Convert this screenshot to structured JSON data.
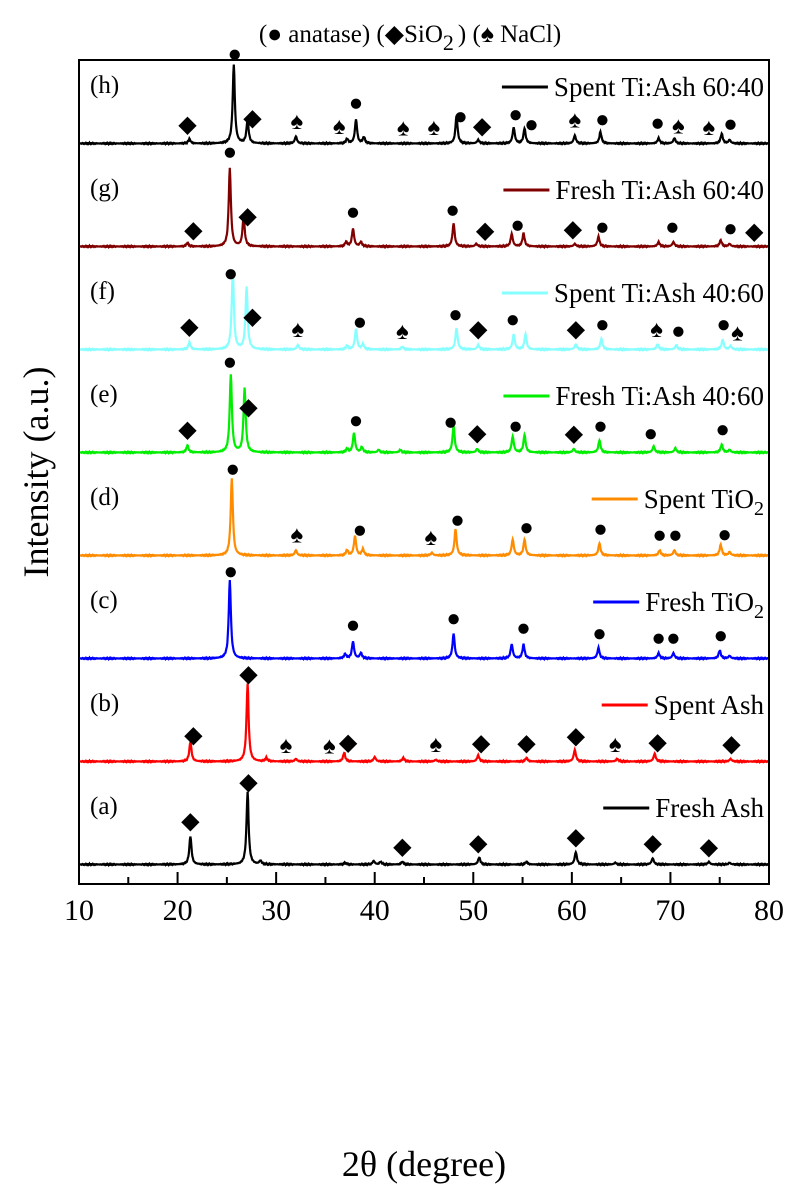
{
  "chart_data": {
    "type": "line",
    "header": {
      "anatase_label": "anatase",
      "sio2_label": "SiO",
      "sio2_subscript": "2",
      "nacl_label": "NaCl"
    },
    "xlabel": "2θ (degree)",
    "ylabel": "Intensity (a.u.)",
    "xlim": [
      10,
      80
    ],
    "xticks": [
      10,
      20,
      30,
      40,
      50,
      60,
      70,
      80
    ],
    "marker_glyphs": {
      "anatase": "●",
      "sio2": "◆",
      "nacl": "♠"
    },
    "series": [
      {
        "panel": "(a)",
        "name": "Fresh Ash",
        "color": "#000000",
        "peaks": [
          [
            21.3,
            0.32
          ],
          [
            27.1,
            0.82
          ],
          [
            28.4,
            0.04
          ],
          [
            37.0,
            0.02
          ],
          [
            39.9,
            0.04
          ],
          [
            40.6,
            0.03
          ],
          [
            42.8,
            0.03
          ],
          [
            50.6,
            0.08
          ],
          [
            55.4,
            0.03
          ],
          [
            60.4,
            0.14
          ],
          [
            64.4,
            0.02
          ],
          [
            68.2,
            0.07
          ],
          [
            73.9,
            0.03
          ],
          [
            76.0,
            0.02
          ]
        ],
        "markers": [
          [
            "sio2",
            21.3
          ],
          [
            "sio2",
            27.2
          ],
          [
            "sio2",
            42.8
          ],
          [
            "sio2",
            50.5
          ],
          [
            "sio2",
            60.4
          ],
          [
            "sio2",
            68.2
          ],
          [
            "sio2",
            73.9
          ]
        ]
      },
      {
        "panel": "(b)",
        "name": "Spent Ash",
        "color": "#ff0000",
        "peaks": [
          [
            21.3,
            0.22
          ],
          [
            27.1,
            0.88
          ],
          [
            29.0,
            0.04
          ],
          [
            32.0,
            0.03
          ],
          [
            36.9,
            0.1
          ],
          [
            40.0,
            0.05
          ],
          [
            42.9,
            0.04
          ],
          [
            46.2,
            0.02
          ],
          [
            50.5,
            0.07
          ],
          [
            55.4,
            0.04
          ],
          [
            60.3,
            0.13
          ],
          [
            64.6,
            0.03
          ],
          [
            68.4,
            0.09
          ],
          [
            76.1,
            0.03
          ]
        ],
        "markers": [
          [
            "sio2",
            21.6
          ],
          [
            "nacl",
            31.0
          ],
          [
            "nacl",
            35.4
          ],
          [
            "sio2",
            37.3
          ],
          [
            "sio2",
            27.2
          ],
          [
            "nacl",
            46.2
          ],
          [
            "sio2",
            50.8
          ],
          [
            "sio2",
            55.4
          ],
          [
            "sio2",
            60.4
          ],
          [
            "nacl",
            64.4
          ],
          [
            "sio2",
            68.7
          ],
          [
            "sio2",
            76.2
          ]
        ]
      },
      {
        "panel": "(c)",
        "name": "Fresh TiO",
        "name_subscript": "2",
        "color": "#0000ff",
        "peaks": [
          [
            25.3,
            0.88
          ],
          [
            37.0,
            0.05
          ],
          [
            37.8,
            0.19
          ],
          [
            38.6,
            0.06
          ],
          [
            48.0,
            0.28
          ],
          [
            53.9,
            0.16
          ],
          [
            55.1,
            0.16
          ],
          [
            62.7,
            0.12
          ],
          [
            68.8,
            0.06
          ],
          [
            70.3,
            0.06
          ],
          [
            75.0,
            0.09
          ],
          [
            76.0,
            0.03
          ]
        ],
        "markers": [
          [
            "anatase",
            25.4
          ],
          [
            "anatase",
            37.8
          ],
          [
            "anatase",
            48.0
          ],
          [
            "anatase",
            55.1
          ],
          [
            "anatase",
            62.8
          ],
          [
            "anatase",
            68.8
          ],
          [
            "anatase",
            70.3
          ],
          [
            "anatase",
            75.1
          ]
        ]
      },
      {
        "panel": "(d)",
        "name": "Spent TiO",
        "name_subscript": "2",
        "color": "#ff8c00",
        "peaks": [
          [
            25.5,
            0.87
          ],
          [
            32.0,
            0.06
          ],
          [
            37.2,
            0.06
          ],
          [
            38.0,
            0.22
          ],
          [
            38.8,
            0.07
          ],
          [
            45.8,
            0.03
          ],
          [
            48.2,
            0.3
          ],
          [
            54.0,
            0.18
          ],
          [
            55.2,
            0.18
          ],
          [
            62.8,
            0.14
          ],
          [
            68.9,
            0.06
          ],
          [
            70.4,
            0.06
          ],
          [
            75.1,
            0.12
          ],
          [
            76.0,
            0.04
          ]
        ],
        "markers": [
          [
            "anatase",
            25.6
          ],
          [
            "nacl",
            32.1
          ],
          [
            "anatase",
            38.5
          ],
          [
            "nacl",
            45.7
          ],
          [
            "anatase",
            48.4
          ],
          [
            "anatase",
            55.4
          ],
          [
            "anatase",
            62.9
          ],
          [
            "anatase",
            68.9
          ],
          [
            "anatase",
            70.5
          ],
          [
            "anatase",
            75.5
          ]
        ]
      },
      {
        "panel": "(e)",
        "name": "Fresh Ti:Ash 40:60",
        "color": "#00ee00",
        "peaks": [
          [
            21.0,
            0.08
          ],
          [
            25.4,
            0.88
          ],
          [
            26.8,
            0.72
          ],
          [
            37.2,
            0.04
          ],
          [
            37.9,
            0.22
          ],
          [
            38.7,
            0.06
          ],
          [
            40.4,
            0.03
          ],
          [
            42.6,
            0.03
          ],
          [
            48.0,
            0.3
          ],
          [
            50.4,
            0.04
          ],
          [
            54.0,
            0.18
          ],
          [
            55.2,
            0.2
          ],
          [
            60.2,
            0.04
          ],
          [
            62.8,
            0.14
          ],
          [
            68.3,
            0.07
          ],
          [
            70.5,
            0.05
          ],
          [
            75.2,
            0.09
          ],
          [
            76.0,
            0.03
          ]
        ],
        "markers": [
          [
            "sio2",
            21.0
          ],
          [
            "anatase",
            25.3
          ],
          [
            "sio2",
            27.2
          ],
          [
            "anatase",
            38.1
          ],
          [
            "anatase",
            47.7
          ],
          [
            "sio2",
            50.4
          ],
          [
            "anatase",
            54.3
          ],
          [
            "sio2",
            60.2
          ],
          [
            "anatase",
            62.9
          ],
          [
            "anatase",
            68.0
          ],
          [
            "anatase",
            75.3
          ]
        ]
      },
      {
        "panel": "(f)",
        "name": "Spent Ti:Ash 40:60",
        "color": "#88ffff",
        "peaks": [
          [
            21.2,
            0.08
          ],
          [
            25.6,
            0.87
          ],
          [
            27.0,
            0.7
          ],
          [
            32.2,
            0.05
          ],
          [
            37.2,
            0.04
          ],
          [
            38.1,
            0.23
          ],
          [
            38.8,
            0.06
          ],
          [
            42.8,
            0.03
          ],
          [
            48.3,
            0.24
          ],
          [
            50.5,
            0.05
          ],
          [
            54.1,
            0.17
          ],
          [
            55.3,
            0.17
          ],
          [
            60.4,
            0.06
          ],
          [
            63.0,
            0.12
          ],
          [
            68.7,
            0.06
          ],
          [
            70.6,
            0.05
          ],
          [
            75.3,
            0.11
          ],
          [
            76.1,
            0.04
          ]
        ],
        "markers": [
          [
            "sio2",
            21.2
          ],
          [
            "anatase",
            25.4
          ],
          [
            "sio2",
            27.6
          ],
          [
            "nacl",
            32.2
          ],
          [
            "anatase",
            38.5
          ],
          [
            "nacl",
            42.8
          ],
          [
            "anatase",
            48.2
          ],
          [
            "sio2",
            50.5
          ],
          [
            "anatase",
            54.0
          ],
          [
            "sio2",
            60.4
          ],
          [
            "anatase",
            63.1
          ],
          [
            "nacl",
            68.6
          ],
          [
            "anatase",
            70.8
          ],
          [
            "anatase",
            75.4
          ],
          [
            "nacl",
            76.8
          ]
        ]
      },
      {
        "panel": "(g)",
        "name": "Fresh Ti:Ash 60:40",
        "color": "#800000",
        "peaks": [
          [
            21.0,
            0.04
          ],
          [
            25.3,
            0.88
          ],
          [
            26.7,
            0.33
          ],
          [
            37.1,
            0.05
          ],
          [
            37.8,
            0.2
          ],
          [
            38.6,
            0.05
          ],
          [
            48.0,
            0.26
          ],
          [
            50.3,
            0.03
          ],
          [
            53.9,
            0.14
          ],
          [
            55.1,
            0.15
          ],
          [
            60.3,
            0.03
          ],
          [
            62.7,
            0.11
          ],
          [
            68.8,
            0.05
          ],
          [
            70.3,
            0.05
          ],
          [
            75.1,
            0.07
          ],
          [
            76.0,
            0.03
          ]
        ],
        "markers": [
          [
            "sio2",
            21.6
          ],
          [
            "anatase",
            25.3
          ],
          [
            "sio2",
            27.1
          ],
          [
            "anatase",
            37.8
          ],
          [
            "anatase",
            47.9
          ],
          [
            "sio2",
            51.2
          ],
          [
            "anatase",
            54.5
          ],
          [
            "sio2",
            60.1
          ],
          [
            "anatase",
            63.1
          ],
          [
            "anatase",
            70.2
          ],
          [
            "anatase",
            76.1
          ],
          [
            "sio2",
            78.5
          ]
        ]
      },
      {
        "panel": "(h)",
        "name": "Spent Ti:Ash 60:40",
        "color": "#000000",
        "peaks": [
          [
            21.2,
            0.05
          ],
          [
            25.7,
            0.89
          ],
          [
            27.1,
            0.27
          ],
          [
            32.0,
            0.08
          ],
          [
            37.2,
            0.05
          ],
          [
            38.1,
            0.27
          ],
          [
            38.9,
            0.07
          ],
          [
            48.3,
            0.31
          ],
          [
            50.5,
            0.04
          ],
          [
            54.1,
            0.18
          ],
          [
            55.2,
            0.17
          ],
          [
            60.3,
            0.09
          ],
          [
            62.9,
            0.13
          ],
          [
            68.8,
            0.06
          ],
          [
            70.4,
            0.06
          ],
          [
            75.2,
            0.11
          ],
          [
            76.0,
            0.04
          ]
        ],
        "markers": [
          [
            "sio2",
            21.0
          ],
          [
            "anatase",
            25.8
          ],
          [
            "sio2",
            27.6
          ],
          [
            "nacl",
            32.1
          ],
          [
            "nacl",
            36.4
          ],
          [
            "anatase",
            38.1
          ],
          [
            "nacl",
            42.9
          ],
          [
            "nacl",
            46.0
          ],
          [
            "anatase",
            48.7
          ],
          [
            "sio2",
            50.9
          ],
          [
            "anatase",
            54.3
          ],
          [
            "anatase",
            55.9
          ],
          [
            "nacl",
            60.3
          ],
          [
            "anatase",
            63.1
          ],
          [
            "anatase",
            68.7
          ],
          [
            "nacl",
            70.8
          ],
          [
            "nacl",
            73.9
          ],
          [
            "anatase",
            76.1
          ]
        ]
      }
    ]
  }
}
